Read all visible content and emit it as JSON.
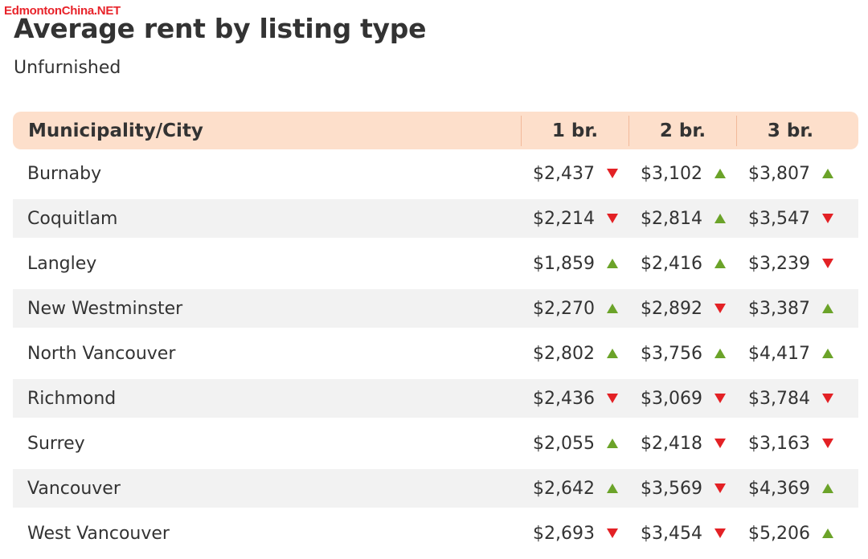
{
  "watermark": "EdmontonChina.NET",
  "title": "Average rent by listing type",
  "subtitle": "Unfurnished",
  "colors": {
    "header_bg": "#fddfcb",
    "row_alt_bg": "#f2f2f2",
    "up": "#6ba329",
    "down": "#e32125"
  },
  "chart_data": {
    "type": "table",
    "title": "Average rent by listing type",
    "subtitle": "Unfurnished",
    "columns": [
      "Municipality/City",
      "1 br.",
      "2 br.",
      "3 br."
    ],
    "rows": [
      {
        "name": "Burnaby",
        "values": [
          "$2,437",
          "$3,102",
          "$3,807"
        ],
        "trend": [
          "down",
          "up",
          "up"
        ]
      },
      {
        "name": "Coquitlam",
        "values": [
          "$2,214",
          "$2,814",
          "$3,547"
        ],
        "trend": [
          "down",
          "up",
          "down"
        ]
      },
      {
        "name": "Langley",
        "values": [
          "$1,859",
          "$2,416",
          "$3,239"
        ],
        "trend": [
          "up",
          "up",
          "down"
        ]
      },
      {
        "name": "New Westminster",
        "values": [
          "$2,270",
          "$2,892",
          "$3,387"
        ],
        "trend": [
          "up",
          "down",
          "up"
        ]
      },
      {
        "name": "North Vancouver",
        "values": [
          "$2,802",
          "$3,756",
          "$4,417"
        ],
        "trend": [
          "up",
          "up",
          "up"
        ]
      },
      {
        "name": "Richmond",
        "values": [
          "$2,436",
          "$3,069",
          "$3,784"
        ],
        "trend": [
          "down",
          "down",
          "down"
        ]
      },
      {
        "name": "Surrey",
        "values": [
          "$2,055",
          "$2,418",
          "$3,163"
        ],
        "trend": [
          "up",
          "down",
          "down"
        ]
      },
      {
        "name": "Vancouver",
        "values": [
          "$2,642",
          "$3,569",
          "$4,369"
        ],
        "trend": [
          "up",
          "down",
          "up"
        ]
      },
      {
        "name": "West Vancouver",
        "values": [
          "$2,693",
          "$3,454",
          "$5,206"
        ],
        "trend": [
          "down",
          "down",
          "up"
        ]
      }
    ]
  }
}
